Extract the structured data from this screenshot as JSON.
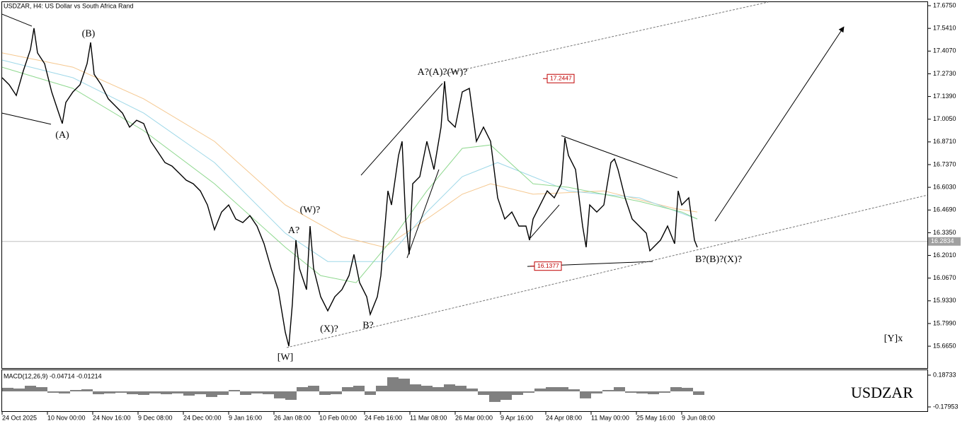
{
  "chart_data": [
    {
      "type": "line",
      "title": "USDZAR, H4:  US Dollar vs South Africa Rand",
      "watermark": "USDZAR",
      "xlim": [
        0,
        1307
      ],
      "xticks": [
        {
          "value": 0,
          "label": "24 Oct 2025"
        },
        {
          "value": 64,
          "label": "10 Nov 00:00"
        },
        {
          "value": 128,
          "label": "24 Nov 16:00"
        },
        {
          "value": 192,
          "label": "9 Dec 08:00"
        },
        {
          "value": 256,
          "label": "24 Dec 00:00"
        },
        {
          "value": 320,
          "label": "9 Jan 16:00"
        },
        {
          "value": 384,
          "label": "26 Jan 08:00"
        },
        {
          "value": 448,
          "label": "10 Feb 00:00"
        },
        {
          "value": 512,
          "label": "24 Feb 16:00"
        },
        {
          "value": 576,
          "label": "11 Mar 08:00"
        },
        {
          "value": 640,
          "label": "26 Mar 00:00"
        },
        {
          "value": 704,
          "label": "9 Apr 16:00"
        },
        {
          "value": 768,
          "label": "24 Apr 08:00"
        },
        {
          "value": 832,
          "label": "11 May 00:00"
        },
        {
          "value": 896,
          "label": "25 May 16:00"
        },
        {
          "value": 960,
          "label": "9 Jun 08:00"
        }
      ],
      "ylim": [
        15.536,
        17.696
      ],
      "yticks": [
        {
          "value": 17.675,
          "label": "17.6750"
        },
        {
          "value": 17.541,
          "label": "17.5410"
        },
        {
          "value": 17.407,
          "label": "17.4070"
        },
        {
          "value": 17.273,
          "label": "17.2730"
        },
        {
          "value": 17.139,
          "label": "17.1390"
        },
        {
          "value": 17.005,
          "label": "17.0050"
        },
        {
          "value": 16.871,
          "label": "16.8710"
        },
        {
          "value": 16.737,
          "label": "16.7370"
        },
        {
          "value": 16.603,
          "label": "16.6030"
        },
        {
          "value": 16.469,
          "label": "16.4690"
        },
        {
          "value": 16.335,
          "label": "16.3350"
        },
        {
          "value": 16.201,
          "label": "16.2010"
        },
        {
          "value": 16.067,
          "label": "16.0670"
        },
        {
          "value": 15.933,
          "label": "15.9330"
        },
        {
          "value": 15.799,
          "label": "15.7990"
        },
        {
          "value": 15.665,
          "label": "15.6650"
        }
      ],
      "series": [
        {
          "color": "#f5c890",
          "x": [
            0,
            100,
            200,
            300,
            400,
            480,
            540,
            600,
            650,
            690,
            750,
            850,
            950,
            982
          ],
          "values": [
            17.396,
            17.312,
            17.125,
            16.874,
            16.499,
            16.311,
            16.249,
            16.416,
            16.562,
            16.624,
            16.562,
            16.582,
            16.478,
            16.457
          ]
        },
        {
          "color": "#9fd8e8",
          "x": [
            0,
            100,
            200,
            300,
            400,
            460,
            540,
            600,
            650,
            700,
            800,
            900,
            982
          ],
          "values": [
            17.354,
            17.25,
            17.041,
            16.749,
            16.332,
            16.165,
            16.165,
            16.457,
            16.666,
            16.749,
            16.582,
            16.541,
            16.416
          ]
        },
        {
          "color": "#8fd88f",
          "x": [
            0,
            100,
            200,
            300,
            400,
            450,
            500,
            550,
            600,
            650,
            690,
            750,
            800,
            900,
            960,
            982
          ],
          "values": [
            17.312,
            17.187,
            16.937,
            16.624,
            16.249,
            16.082,
            16.04,
            16.291,
            16.582,
            16.833,
            16.853,
            16.624,
            16.603,
            16.52,
            16.457,
            16.416
          ]
        },
        {
          "color": "#000000",
          "x": [
            0,
            10,
            20,
            30,
            40,
            45,
            50,
            60,
            70,
            80,
            85,
            90,
            100,
            110,
            120,
            125,
            130,
            140,
            150,
            160,
            170,
            180,
            190,
            200,
            210,
            220,
            230,
            240,
            250,
            260,
            270,
            280,
            290,
            300,
            310,
            320,
            330,
            340,
            350,
            360,
            370,
            380,
            390,
            400,
            405,
            410,
            415,
            420,
            430,
            435,
            440,
            450,
            460,
            470,
            480,
            490,
            497,
            505,
            515,
            520,
            530,
            535,
            540,
            545,
            550,
            560,
            565,
            570,
            575,
            580,
            590,
            600,
            610,
            620,
            625,
            630,
            640,
            650,
            660,
            670,
            680,
            690,
            700,
            710,
            720,
            730,
            740,
            745,
            750,
            760,
            770,
            780,
            790,
            795,
            800,
            810,
            820,
            825,
            830,
            840,
            850,
            860,
            865,
            870,
            880,
            890,
            900,
            910,
            915,
            920,
            930,
            940,
            950,
            955,
            960,
            970,
            978,
            982
          ],
          "values": [
            17.25,
            17.208,
            17.145,
            17.291,
            17.416,
            17.542,
            17.396,
            17.333,
            17.166,
            17.041,
            16.979,
            17.104,
            17.166,
            17.208,
            17.333,
            17.458,
            17.27,
            17.208,
            17.125,
            17.083,
            17.041,
            16.958,
            16.999,
            16.979,
            16.874,
            16.812,
            16.749,
            16.728,
            16.687,
            16.645,
            16.624,
            16.582,
            16.499,
            16.353,
            16.457,
            16.499,
            16.416,
            16.395,
            16.436,
            16.374,
            16.27,
            16.124,
            15.999,
            15.748,
            15.665,
            15.915,
            16.291,
            16.124,
            15.999,
            16.374,
            16.124,
            15.957,
            15.874,
            15.957,
            15.999,
            16.082,
            16.207,
            16.04,
            15.957,
            15.853,
            15.957,
            16.082,
            16.332,
            16.582,
            16.499,
            16.791,
            16.874,
            16.416,
            16.207,
            16.624,
            16.666,
            16.874,
            16.708,
            16.958,
            17.229,
            16.999,
            16.958,
            17.166,
            17.187,
            16.874,
            16.958,
            16.874,
            16.541,
            16.416,
            16.457,
            16.374,
            16.374,
            16.291,
            16.416,
            16.499,
            16.582,
            16.541,
            16.624,
            16.895,
            16.791,
            16.708,
            16.374,
            16.249,
            16.499,
            16.457,
            16.499,
            16.749,
            16.77,
            16.708,
            16.541,
            16.416,
            16.374,
            16.332,
            16.228,
            16.249,
            16.291,
            16.374,
            16.27,
            16.582,
            16.499,
            16.541,
            16.291,
            16.249
          ]
        }
      ],
      "current_price": 16.2834,
      "price_labels": [
        {
          "x": 770,
          "value": 17.2447
        },
        {
          "x": 752,
          "value": 16.1377
        }
      ],
      "annotations": [
        {
          "text": "(B)",
          "x": 122,
          "y": 17.508
        },
        {
          "text": "(A)",
          "x": 85,
          "y": 16.908
        },
        {
          "text": "(W)?",
          "x": 435,
          "y": 16.466
        },
        {
          "text": "A?",
          "x": 412,
          "y": 16.345
        },
        {
          "text": "(X)?",
          "x": 462,
          "y": 15.765
        },
        {
          "text": "B?",
          "x": 517,
          "y": 15.786
        },
        {
          "text": "[W]",
          "x": 400,
          "y": 15.598
        },
        {
          "text": "A?(A)?(W)?",
          "x": 622,
          "y": 17.279
        },
        {
          "text": "B?(B)?(X)?",
          "x": 1012,
          "y": 16.174
        },
        {
          "text": "[Y]x",
          "x": 1259,
          "y": 15.707
        }
      ],
      "lines": [
        {
          "style": "solid",
          "points": [
            [
              0,
              17.625
            ],
            [
              42,
              17.554
            ]
          ]
        },
        {
          "style": "solid",
          "points": [
            [
              0,
              17.041
            ],
            [
              69,
              16.975
            ]
          ]
        },
        {
          "style": "solid",
          "points": [
            [
              507,
              16.674
            ],
            [
              622,
              17.216
            ]
          ]
        },
        {
          "style": "solid",
          "points": [
            [
              572,
              16.186
            ],
            [
              617,
              16.708
            ]
          ]
        },
        {
          "style": "solid",
          "points": [
            [
              745,
              16.299
            ],
            [
              787,
              16.499
            ]
          ]
        },
        {
          "style": "solid",
          "points": [
            [
              790,
              16.908
            ],
            [
              954,
              16.658
            ]
          ]
        },
        {
          "style": "solid",
          "points": [
            [
              742,
              16.136
            ],
            [
              919,
              16.165
            ]
          ]
        },
        {
          "style": "dashed",
          "points": [
            [
              402,
              15.657
            ],
            [
              1307,
              16.557
            ]
          ]
        },
        {
          "style": "dashed",
          "points": [
            [
              622,
              17.27
            ],
            [
              1082,
              17.696
            ]
          ]
        },
        {
          "style": "solid",
          "arrow": true,
          "points": [
            [
              1007,
              16.403
            ],
            [
              1189,
              17.55
            ]
          ]
        }
      ]
    },
    {
      "type": "bar",
      "title": "MACD(12,26,9) -0.04714 -0.01214",
      "color": "#808080",
      "xlim": [
        0,
        1307
      ],
      "ylim": [
        -0.2284,
        0.2444
      ],
      "yticks": [
        0.18733,
        -0.17953
      ],
      "x": [
        8,
        24,
        40,
        56,
        72,
        88,
        104,
        120,
        136,
        152,
        168,
        184,
        200,
        216,
        232,
        248,
        264,
        280,
        296,
        312,
        328,
        344,
        360,
        376,
        392,
        408,
        424,
        440,
        456,
        472,
        488,
        504,
        520,
        536,
        552,
        568,
        584,
        600,
        616,
        632,
        648,
        664,
        680,
        696,
        712,
        728,
        744,
        760,
        776,
        792,
        808,
        824,
        840,
        856,
        872,
        888,
        904,
        920,
        936,
        952,
        968,
        984
      ],
      "values": [
        0.041,
        0.033,
        0.065,
        0.049,
        -0.016,
        -0.024,
        0.016,
        0.024,
        -0.033,
        -0.024,
        -0.016,
        -0.033,
        -0.041,
        -0.024,
        -0.033,
        -0.024,
        -0.049,
        -0.033,
        -0.065,
        -0.041,
        0.016,
        -0.041,
        -0.024,
        -0.033,
        -0.081,
        -0.098,
        0.049,
        0.065,
        -0.041,
        -0.033,
        0.049,
        0.065,
        -0.041,
        0.065,
        0.163,
        0.147,
        0.081,
        0.065,
        0.049,
        0.081,
        0.065,
        0.033,
        -0.041,
        -0.122,
        -0.098,
        -0.041,
        -0.016,
        0.033,
        0.049,
        0.049,
        0.024,
        -0.081,
        -0.024,
        0.016,
        0.049,
        -0.016,
        -0.024,
        -0.033,
        -0.016,
        0.049,
        0.041,
        -0.041
      ]
    }
  ]
}
